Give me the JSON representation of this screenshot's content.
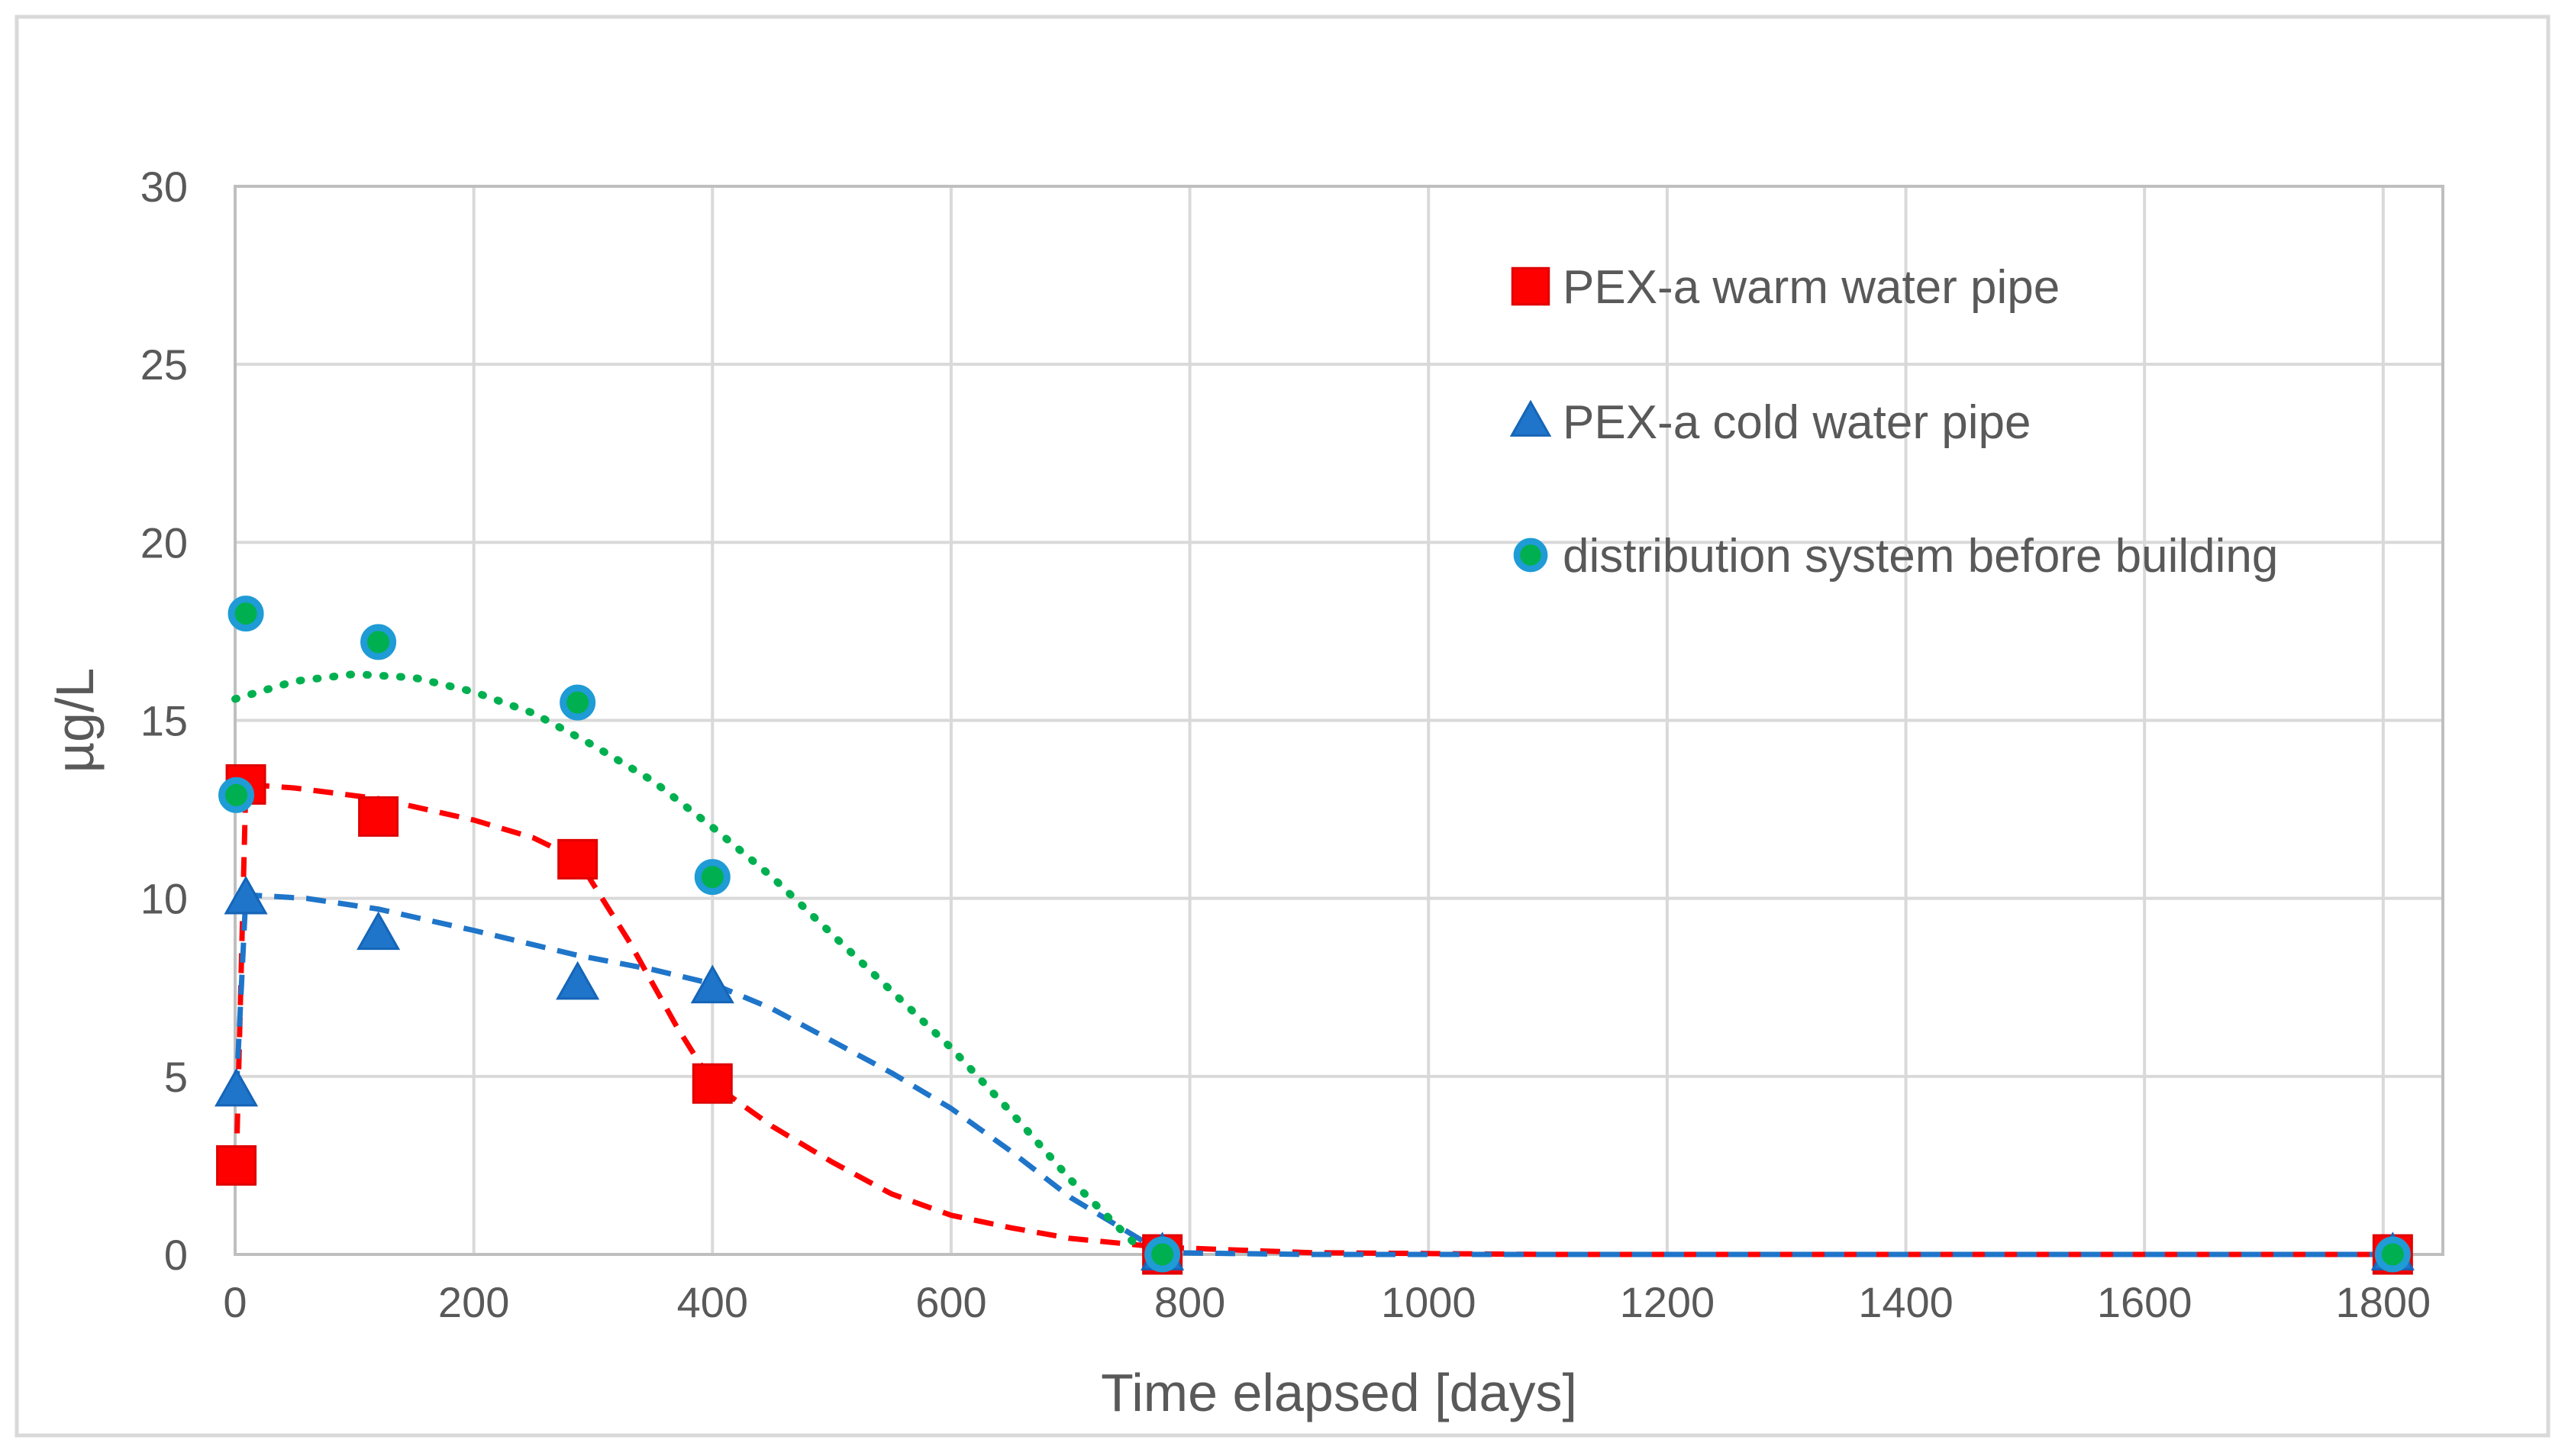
{
  "chart_data": {
    "type": "scatter",
    "title": "",
    "xlabel": "Time elapsed [days]",
    "ylabel": "µg/L",
    "xlim": [
      0,
      1850
    ],
    "ylim": [
      0,
      30
    ],
    "xticks": [
      0,
      200,
      400,
      600,
      800,
      1000,
      1200,
      1400,
      1600,
      1800
    ],
    "yticks": [
      0,
      5,
      10,
      15,
      20,
      25,
      30
    ],
    "grid": true,
    "legend_position": "top-right",
    "series": [
      {
        "name": "PEX-a warm water pipe",
        "marker": "square",
        "color": "#ff0000",
        "trend_color": "#ff0000",
        "trend_style": "dashed",
        "x": [
          1,
          9,
          120,
          287,
          400,
          777,
          1808
        ],
        "y": [
          2.5,
          13.2,
          12.3,
          11.1,
          4.8,
          0,
          0
        ],
        "trend": {
          "x": [
            1,
            9,
            50,
            120,
            200,
            250,
            287,
            330,
            370,
            400,
            450,
            500,
            550,
            600,
            650,
            700,
            777,
            900,
            1100,
            1400,
            1808
          ],
          "y": [
            2.5,
            13.2,
            13.1,
            12.8,
            12.2,
            11.7,
            11.1,
            8.8,
            6.4,
            4.8,
            3.6,
            2.6,
            1.7,
            1.1,
            0.75,
            0.45,
            0.2,
            0.05,
            0,
            0,
            0
          ]
        }
      },
      {
        "name": "PEX-a cold water pipe",
        "marker": "triangle",
        "color": "#1f75c9",
        "trend_color": "#1f75c9",
        "trend_style": "dashed",
        "x": [
          1,
          9,
          120,
          287,
          400,
          777,
          1808
        ],
        "y": [
          4.6,
          10.0,
          9.0,
          7.6,
          7.5,
          0,
          0
        ],
        "trend": {
          "x": [
            1,
            9,
            60,
            120,
            200,
            287,
            350,
            400,
            450,
            500,
            550,
            600,
            650,
            700,
            777,
            900,
            1100,
            1400,
            1808
          ],
          "y": [
            4.6,
            10.1,
            10.0,
            9.7,
            9.1,
            8.4,
            8.0,
            7.6,
            6.9,
            6.0,
            5.1,
            4.1,
            2.9,
            1.6,
            0.05,
            0,
            0,
            0,
            0
          ]
        }
      },
      {
        "name": "distribution system before building",
        "marker": "circle",
        "color": "#00b050",
        "edge_color": "#1f9bd6",
        "trend_color": "#00b050",
        "trend_style": "dotted",
        "x": [
          1,
          9,
          120,
          287,
          400,
          777,
          1808
        ],
        "y": [
          12.9,
          18.0,
          17.2,
          15.5,
          10.6,
          0,
          0
        ],
        "trend": {
          "x": [
            0,
            50,
            100,
            150,
            200,
            250,
            300,
            350,
            400,
            450,
            500,
            550,
            600,
            650,
            700,
            760
          ],
          "y": [
            15.6,
            16.1,
            16.3,
            16.2,
            15.8,
            15.2,
            14.3,
            13.3,
            12.0,
            10.6,
            9.0,
            7.4,
            5.8,
            4.0,
            2.1,
            0.1
          ]
        }
      }
    ]
  }
}
